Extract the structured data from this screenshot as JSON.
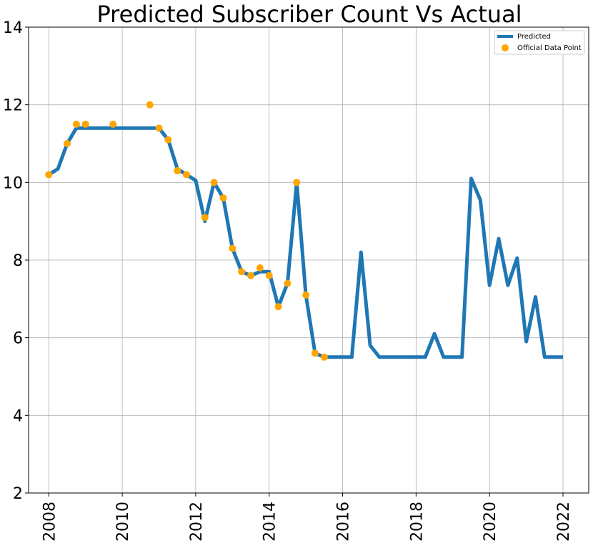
{
  "chart_data": {
    "type": "line",
    "title": "Predicted Subscriber Count Vs Actual",
    "xlabel": "",
    "ylabel": "",
    "xlim": [
      2007.45,
      2022.7
    ],
    "ylim": [
      2,
      14
    ],
    "xticks": [
      2008,
      2010,
      2012,
      2014,
      2016,
      2018,
      2020,
      2022
    ],
    "yticks": [
      2,
      4,
      6,
      8,
      10,
      12,
      14
    ],
    "grid": true,
    "legend": {
      "placement": "top-right",
      "entries": [
        "Predicted",
        "Official Data Point"
      ]
    },
    "series": [
      {
        "name": "Predicted",
        "kind": "line",
        "color": "#1f77b4",
        "points": [
          [
            2008.0,
            10.2
          ],
          [
            2008.25,
            10.35
          ],
          [
            2008.5,
            11.0
          ],
          [
            2008.75,
            11.4
          ],
          [
            2009.0,
            11.4
          ],
          [
            2009.5,
            11.4
          ],
          [
            2010.0,
            11.4
          ],
          [
            2010.5,
            11.4
          ],
          [
            2011.0,
            11.4
          ],
          [
            2011.25,
            11.1
          ],
          [
            2011.5,
            10.35
          ],
          [
            2011.75,
            10.2
          ],
          [
            2012.0,
            10.05
          ],
          [
            2012.25,
            9.0
          ],
          [
            2012.5,
            10.0
          ],
          [
            2012.75,
            9.6
          ],
          [
            2013.0,
            8.3
          ],
          [
            2013.25,
            7.7
          ],
          [
            2013.5,
            7.6
          ],
          [
            2013.75,
            7.7
          ],
          [
            2014.0,
            7.7
          ],
          [
            2014.25,
            6.8
          ],
          [
            2014.5,
            7.4
          ],
          [
            2014.75,
            10.0
          ],
          [
            2015.0,
            7.1
          ],
          [
            2015.25,
            5.6
          ],
          [
            2015.5,
            5.5
          ],
          [
            2015.75,
            5.5
          ],
          [
            2016.0,
            5.5
          ],
          [
            2016.25,
            5.5
          ],
          [
            2016.5,
            8.2
          ],
          [
            2016.75,
            5.8
          ],
          [
            2017.0,
            5.5
          ],
          [
            2017.25,
            5.5
          ],
          [
            2017.5,
            5.5
          ],
          [
            2017.75,
            5.5
          ],
          [
            2018.0,
            5.5
          ],
          [
            2018.25,
            5.5
          ],
          [
            2018.5,
            6.1
          ],
          [
            2018.75,
            5.5
          ],
          [
            2019.0,
            5.5
          ],
          [
            2019.25,
            5.5
          ],
          [
            2019.5,
            10.1
          ],
          [
            2019.75,
            9.55
          ],
          [
            2020.0,
            7.35
          ],
          [
            2020.25,
            8.55
          ],
          [
            2020.5,
            7.35
          ],
          [
            2020.75,
            8.05
          ],
          [
            2021.0,
            5.9
          ],
          [
            2021.25,
            7.05
          ],
          [
            2021.5,
            5.5
          ],
          [
            2021.75,
            5.5
          ],
          [
            2022.0,
            5.5
          ]
        ]
      },
      {
        "name": "Official Data Point",
        "kind": "scatter",
        "color": "#ffa500",
        "points": [
          [
            2008.0,
            10.2
          ],
          [
            2008.5,
            11.0
          ],
          [
            2008.75,
            11.5
          ],
          [
            2009.0,
            11.5
          ],
          [
            2009.75,
            11.5
          ],
          [
            2010.75,
            12.0
          ],
          [
            2011.0,
            11.4
          ],
          [
            2011.25,
            11.1
          ],
          [
            2011.5,
            10.3
          ],
          [
            2011.75,
            10.2
          ],
          [
            2012.25,
            9.1
          ],
          [
            2012.5,
            10.0
          ],
          [
            2012.75,
            9.6
          ],
          [
            2013.0,
            8.3
          ],
          [
            2013.25,
            7.7
          ],
          [
            2013.5,
            7.6
          ],
          [
            2013.75,
            7.8
          ],
          [
            2014.0,
            7.6
          ],
          [
            2014.25,
            6.8
          ],
          [
            2014.5,
            7.4
          ],
          [
            2014.75,
            10.0
          ],
          [
            2015.0,
            7.1
          ],
          [
            2015.25,
            5.6
          ],
          [
            2015.5,
            5.5
          ]
        ]
      }
    ]
  }
}
